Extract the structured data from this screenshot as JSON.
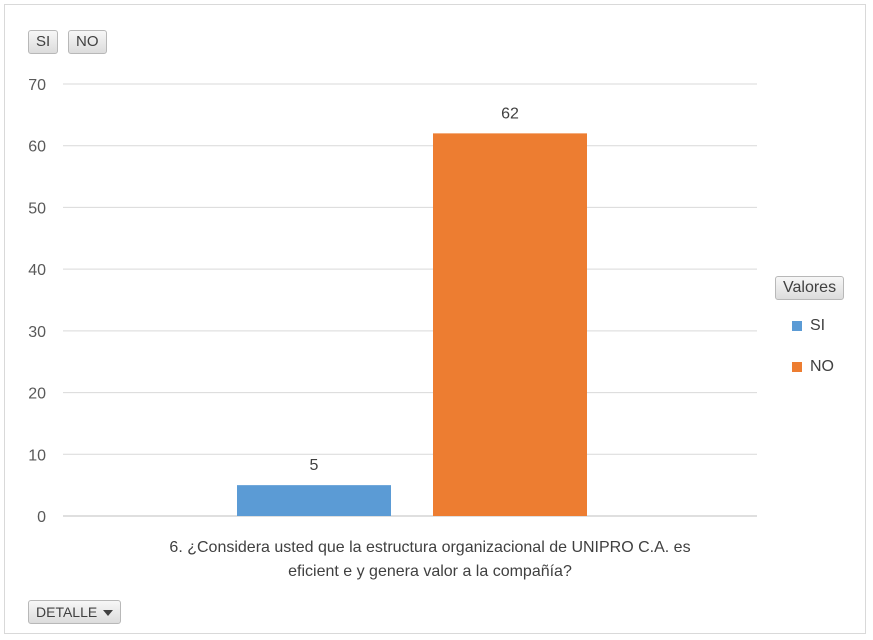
{
  "filters": {
    "field_buttons": [
      "SI",
      "NO"
    ],
    "detail_label": "DETALLE"
  },
  "legend": {
    "title": "Valores",
    "items": [
      {
        "label": "SI",
        "color": "#5B9BD5"
      },
      {
        "label": "NO",
        "color": "#ED7D31"
      }
    ]
  },
  "chart_data": {
    "type": "bar",
    "categories": [
      "6. ¿Considera usted que la estructura organizacional de UNIPRO C.A. es eficient e y genera valor a la compañía?"
    ],
    "category_lines": [
      "6. ¿Considera usted que la estructura organizacional de UNIPRO C.A. es",
      "eficient e y genera valor a la compañía?"
    ],
    "series": [
      {
        "name": "SI",
        "values": [
          5
        ],
        "color": "#5B9BD5"
      },
      {
        "name": "NO",
        "values": [
          62
        ],
        "color": "#ED7D31"
      }
    ],
    "ylim": [
      0,
      70
    ],
    "yticks": [
      0,
      10,
      20,
      30,
      40,
      50,
      60,
      70
    ],
    "grid": true,
    "data_labels": true,
    "legend_position": "right"
  }
}
